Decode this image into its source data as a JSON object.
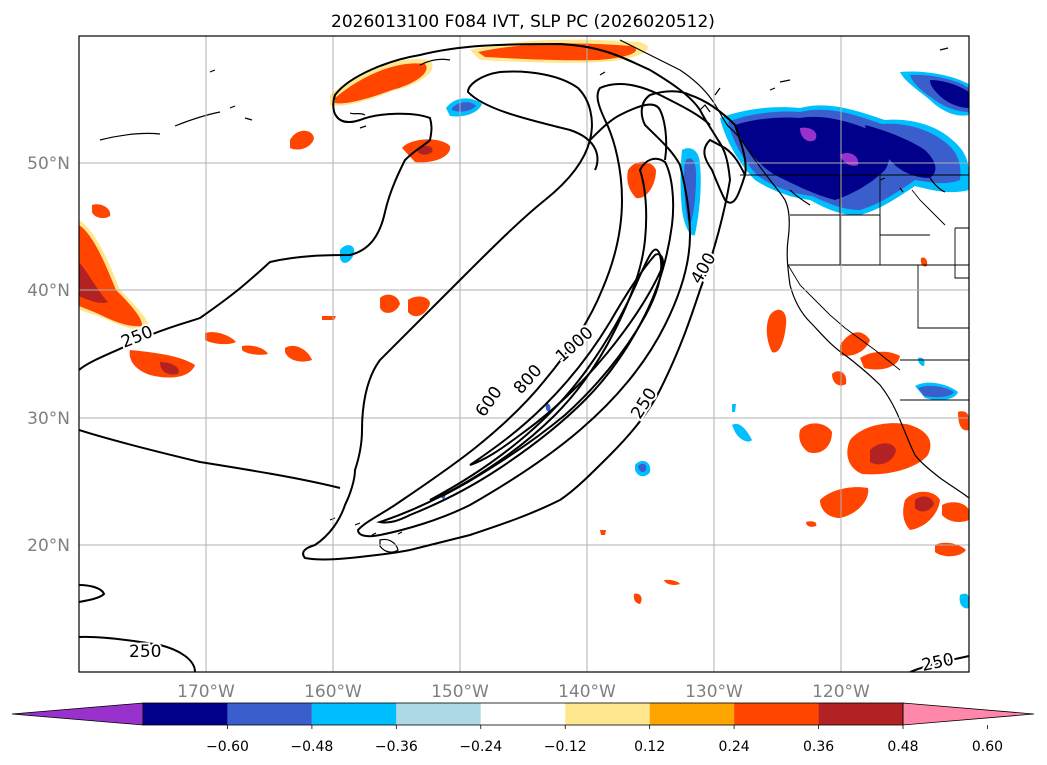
{
  "title": "2026013100 F084 IVT, SLP PC (2026020512)",
  "axes": {
    "lon_labels": [
      "170°W",
      "160°W",
      "150°W",
      "140°W",
      "130°W",
      "120°W"
    ],
    "lat_labels": [
      "50°N",
      "40°N",
      "30°N",
      "20°N"
    ]
  },
  "colorbar": {
    "ticks": [
      "−0.60",
      "−0.48",
      "−0.36",
      "−0.24",
      "−0.12",
      "0.12",
      "0.24",
      "0.36",
      "0.48",
      "0.60"
    ],
    "colors": [
      "#9932cc",
      "#00008b",
      "#3a5fcd",
      "#00bfff",
      "#add8e6",
      "#ffffff",
      "#ffe78f",
      "#ffa500",
      "#ff4500",
      "#b22222",
      "#ff88aa"
    ]
  },
  "contour_labels": [
    "250",
    "600",
    "800",
    "1000",
    "400",
    "250",
    "250",
    "250"
  ],
  "colors": {
    "line": "#000000",
    "grid": "#b0b0b0",
    "land_line": "#000000"
  }
}
